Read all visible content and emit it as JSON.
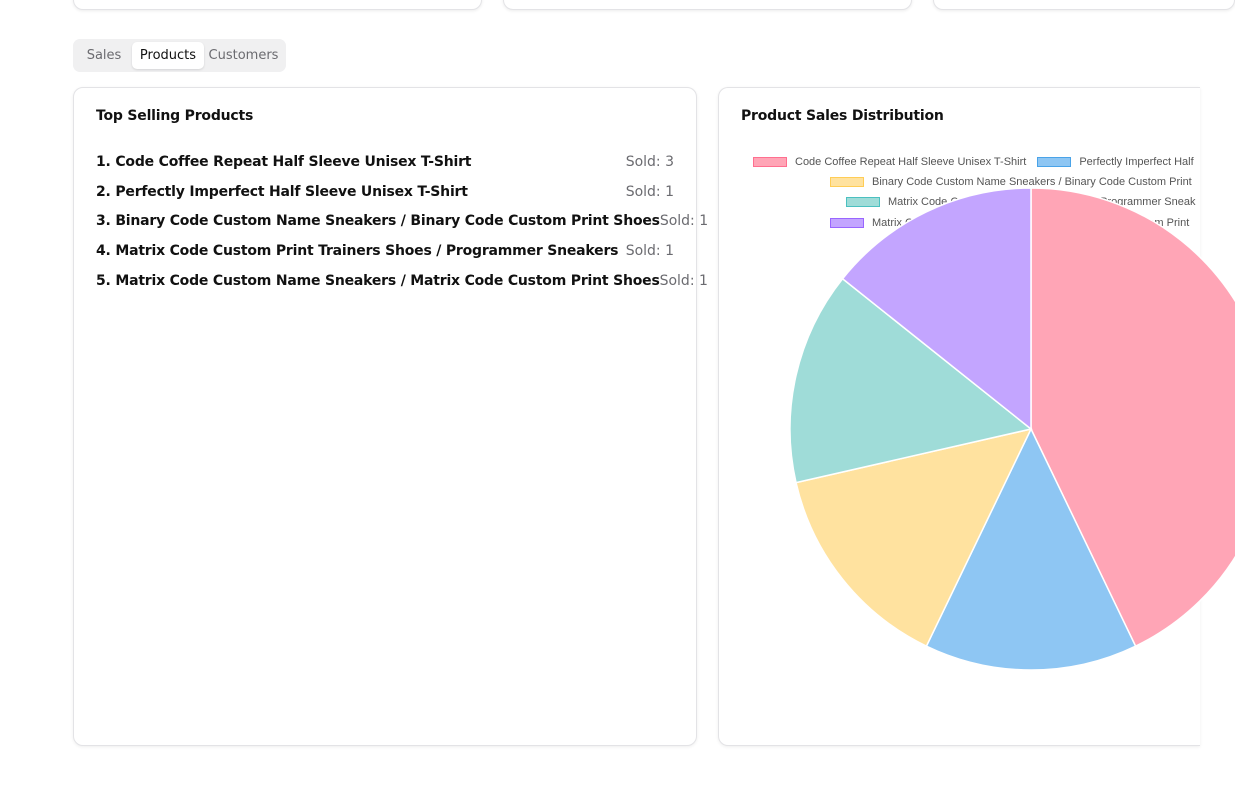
{
  "tabs": [
    {
      "label": "Sales",
      "active": false
    },
    {
      "label": "Products",
      "active": true
    },
    {
      "label": "Customers",
      "active": false
    }
  ],
  "top_products": {
    "title": "Top Selling Products",
    "items": [
      {
        "name": "1. Code Coffee Repeat Half Sleeve Unisex T-Shirt",
        "sold": "Sold: 3"
      },
      {
        "name": "2. Perfectly Imperfect Half Sleeve Unisex T-Shirt",
        "sold": "Sold: 1"
      },
      {
        "name": "3. Binary Code Custom Name Sneakers / Binary Code Custom Print Shoes",
        "sold": "Sold: 1"
      },
      {
        "name": "4. Matrix Code Custom Print Trainers Shoes / Programmer Sneakers",
        "sold": "Sold: 1"
      },
      {
        "name": "5. Matrix Code Custom Name Sneakers / Matrix Code Custom Print Shoes",
        "sold": "Sold: 1"
      }
    ]
  },
  "distribution": {
    "title": "Product Sales Distribution",
    "legend": [
      {
        "label": "Code Coffee Repeat Half Sleeve Unisex T-Shirt",
        "color": "#ffa5b6",
        "border": "#ff6f8f"
      },
      {
        "label": "Perfectly Imperfect Half",
        "color": "#8ec6f3",
        "border": "#4aa3e8"
      },
      {
        "label": "Binary Code Custom Name Sneakers / Binary Code Custom Print",
        "color": "#ffe29f",
        "border": "#ffcd56"
      },
      {
        "label": "Matrix Code Custom Print Trainers Shoes / Programmer Sneak",
        "color": "#9fdcd8",
        "border": "#4bc0c0"
      },
      {
        "label": "Matrix Code Custom Name Sneakers / Matrix Code Custom Print",
        "color": "#c3a5ff",
        "border": "#9966ff"
      }
    ]
  },
  "chart_data": {
    "type": "pie",
    "title": "Product Sales Distribution",
    "categories": [
      "Code Coffee Repeat Half Sleeve Unisex T-Shirt",
      "Perfectly Imperfect Half Sleeve Unisex T-Shirt",
      "Binary Code Custom Name Sneakers / Binary Code Custom Print Shoes",
      "Matrix Code Custom Print Trainers Shoes / Programmer Sneakers",
      "Matrix Code Custom Name Sneakers / Matrix Code Custom Print Shoes"
    ],
    "values": [
      3,
      1,
      1,
      1,
      1
    ],
    "colors": [
      "#ffa5b6",
      "#8ec6f3",
      "#ffe29f",
      "#9fdcd8",
      "#c3a5ff"
    ],
    "legend_position": "top"
  }
}
